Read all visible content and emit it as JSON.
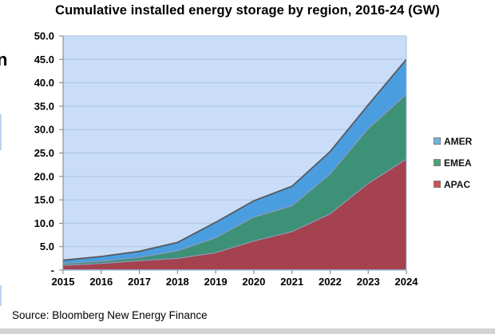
{
  "title": "Cumulative installed energy storage by region, 2016-24 (GW)",
  "source": "Source: Bloomberg New Energy Finance",
  "edge_fragment_text": "n",
  "chart_data": {
    "type": "area",
    "stacked": true,
    "title": "Cumulative installed energy storage by region, 2016-24 (GW)",
    "xlabel": "",
    "ylabel": "",
    "x": [
      2015,
      2016,
      2017,
      2018,
      2019,
      2020,
      2021,
      2022,
      2023,
      2024
    ],
    "xtick_labels": [
      "2015",
      "2016",
      "2017",
      "2018",
      "2019",
      "2020",
      "2021",
      "2022",
      "2023",
      "2024"
    ],
    "ylim": [
      0,
      50
    ],
    "ytick_step": 5,
    "ytick_labels": [
      "50.0",
      "45.0",
      "40.0",
      "35.0",
      "30.0",
      "25.0",
      "20.0",
      "15.0",
      "10.0",
      "5.0",
      "-"
    ],
    "grid": true,
    "legend_position": "right",
    "series": [
      {
        "name": "APAC",
        "color": "#a4424f",
        "legend_color": "#d24f4f",
        "values": [
          1.0,
          1.4,
          2.0,
          2.5,
          3.7,
          6.2,
          8.2,
          12.0,
          18.5,
          23.7
        ]
      },
      {
        "name": "EMEA",
        "color": "#3c9177",
        "legend_color": "#4ba273",
        "values": [
          0.4,
          0.5,
          0.7,
          1.6,
          3.2,
          5.1,
          5.5,
          8.5,
          11.7,
          13.8
        ]
      },
      {
        "name": "AMER",
        "color": "#4a9ee0",
        "legend_color": "#6cb5e2",
        "values": [
          0.7,
          1.0,
          1.3,
          1.8,
          3.3,
          3.5,
          4.2,
          4.8,
          5.1,
          7.5
        ]
      }
    ],
    "totals": [
      2.1,
      2.9,
      4.0,
      5.9,
      10.2,
      14.8,
      17.9,
      25.3,
      35.3,
      45.0
    ],
    "plot_bg": "#c9ddf8",
    "gridline_color": "#aec4e0",
    "border_color": "#a9c0dc",
    "outline_color": "#58595b",
    "boundary_color": "#9097bb",
    "axis_line_color": "#7f7f7f",
    "bottom_axis_color": "#9cc2e5"
  },
  "legend": {
    "items": [
      "AMER",
      "EMEA",
      "APAC"
    ]
  }
}
